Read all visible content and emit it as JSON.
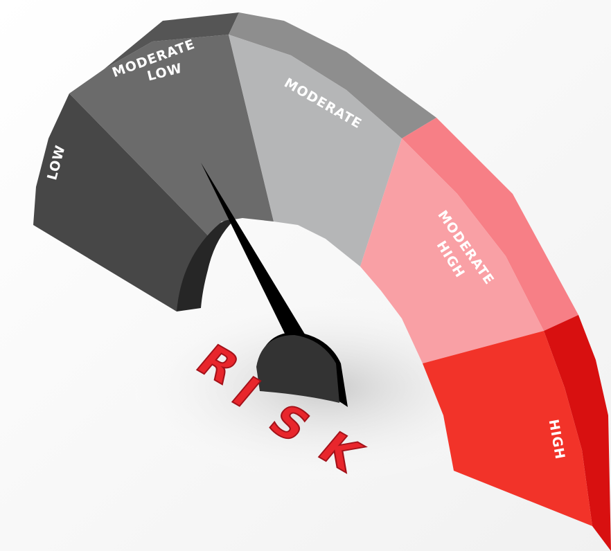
{
  "gauge": {
    "segments": [
      {
        "lines": [
          "LOW"
        ]
      },
      {
        "lines": [
          "MODERATE",
          "LOW"
        ]
      },
      {
        "lines": [
          "MODERATE"
        ]
      },
      {
        "lines": [
          "MODERATE",
          "HIGH"
        ]
      },
      {
        "lines": [
          "HIGH"
        ]
      }
    ]
  },
  "word": {
    "letters": [
      "R",
      "I",
      "S",
      "K"
    ]
  }
}
